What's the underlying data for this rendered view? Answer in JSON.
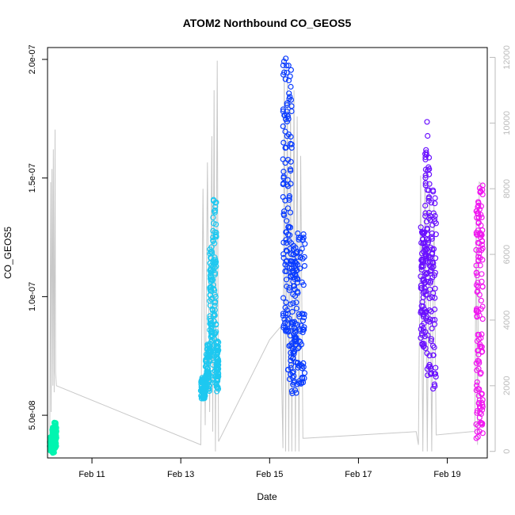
{
  "chart_data": {
    "type": "scatter",
    "title": "ATOM2 Northbound CO_GEOS5",
    "xlabel": "Date",
    "ylabel": "CO_GEOS5",
    "xlim": [
      10.0,
      19.9
    ],
    "ylim": [
      3.2e-08,
      2.05e-07
    ],
    "x_ticks": [
      {
        "value": 11,
        "label": "Feb 11"
      },
      {
        "value": 13,
        "label": "Feb 13"
      },
      {
        "value": 15,
        "label": "Feb 15"
      },
      {
        "value": 17,
        "label": "Feb 17"
      },
      {
        "value": 19,
        "label": "Feb 19"
      }
    ],
    "y_ticks": [
      {
        "value": 5e-08,
        "label": "5.0e-08"
      },
      {
        "value": 1e-07,
        "label": "1.0e-07"
      },
      {
        "value": 1.5e-07,
        "label": "1.5e-07"
      },
      {
        "value": 2e-07,
        "label": "2.0e-07"
      }
    ],
    "y2_ticks": [
      0,
      2000,
      4000,
      6000,
      8000,
      10000,
      12000
    ],
    "y2lim": [
      -200,
      12300
    ],
    "colors": {
      "altitude_line": "#c8c8c8",
      "right_axis": "#bbbbbb",
      "frame": "#000000"
    },
    "series": [
      {
        "color": "#00f5b0",
        "x": [
          10.05,
          10.2
        ],
        "y": [
          3.4e-08,
          4.7e-08
        ],
        "segments": [
          [
            10.05,
            10.1,
            3.5e-08,
            4.1e-08
          ],
          [
            10.1,
            10.15,
            3.4e-08,
            4.5e-08
          ],
          [
            10.15,
            10.2,
            3.6e-08,
            4.7e-08
          ]
        ]
      },
      {
        "color": "#1ec8f0",
        "x": [
          13.45,
          13.85
        ],
        "y": [
          5.7e-08,
          1.43e-07
        ],
        "segments": [
          [
            13.45,
            13.55,
            5.7e-08,
            6.6e-08
          ],
          [
            13.55,
            13.65,
            6e-08,
            8e-08
          ],
          [
            13.65,
            13.72,
            7.5e-08,
            1.24e-07
          ],
          [
            13.72,
            13.8,
            6.2e-08,
            1.43e-07
          ],
          [
            13.8,
            13.85,
            6e-08,
            8.2e-08
          ]
        ]
      },
      {
        "color": "#0a3cff",
        "x": [
          15.3,
          15.8
        ],
        "y": [
          5.9e-08,
          2.04e-07
        ],
        "segments": [
          [
            15.3,
            15.4,
            8.5e-08,
            2.04e-07
          ],
          [
            15.4,
            15.5,
            6.5e-08,
            1.98e-07
          ],
          [
            15.5,
            15.6,
            5.9e-08,
            1.27e-07
          ],
          [
            15.6,
            15.8,
            6.3e-08,
            1.27e-07
          ]
        ]
      },
      {
        "color": "#6a10ff",
        "x": [
          18.4,
          18.75
        ],
        "y": [
          6e-08,
          1.74e-07
        ],
        "segments": [
          [
            18.4,
            18.5,
            7.8e-08,
            1.3e-07
          ],
          [
            18.5,
            18.6,
            6.5e-08,
            1.74e-07
          ],
          [
            18.6,
            18.75,
            6e-08,
            1.45e-07
          ]
        ]
      },
      {
        "color": "#f018f0",
        "x": [
          19.65,
          19.8
        ],
        "y": [
          4e-08,
          1.48e-07
        ],
        "segments": [
          [
            19.65,
            19.72,
            4e-08,
            1.4e-07
          ],
          [
            19.72,
            19.8,
            4.2e-08,
            1.48e-07
          ]
        ]
      }
    ],
    "altitude_track": [
      [
        10.05,
        0
      ],
      [
        10.07,
        8200
      ],
      [
        10.08,
        1200
      ],
      [
        10.1,
        8600
      ],
      [
        10.12,
        2000
      ],
      [
        10.13,
        9200
      ],
      [
        10.15,
        1800
      ],
      [
        10.17,
        9800
      ],
      [
        10.18,
        2400
      ],
      [
        10.2,
        2000
      ],
      [
        13.45,
        200
      ],
      [
        13.5,
        8000
      ],
      [
        13.55,
        800
      ],
      [
        13.6,
        8800
      ],
      [
        13.65,
        1200
      ],
      [
        13.7,
        9600
      ],
      [
        13.72,
        600
      ],
      [
        13.75,
        11000
      ],
      [
        13.78,
        0
      ],
      [
        13.82,
        11900
      ],
      [
        13.85,
        300
      ],
      [
        15.0,
        3400
      ],
      [
        15.25,
        3800
      ],
      [
        15.3,
        100
      ],
      [
        15.33,
        12000
      ],
      [
        15.36,
        0
      ],
      [
        15.4,
        11400
      ],
      [
        15.43,
        0
      ],
      [
        15.47,
        10800
      ],
      [
        15.5,
        0
      ],
      [
        15.55,
        11000
      ],
      [
        15.58,
        0
      ],
      [
        15.62,
        10200
      ],
      [
        15.66,
        0
      ],
      [
        15.7,
        9000
      ],
      [
        15.75,
        400
      ],
      [
        15.8,
        400
      ],
      [
        18.3,
        600
      ],
      [
        18.35,
        200
      ],
      [
        18.4,
        8400
      ],
      [
        18.45,
        0
      ],
      [
        18.5,
        8600
      ],
      [
        18.55,
        0
      ],
      [
        18.6,
        8200
      ],
      [
        18.65,
        0
      ],
      [
        18.7,
        7600
      ],
      [
        18.75,
        500
      ],
      [
        19.55,
        600
      ],
      [
        19.62,
        600
      ],
      [
        19.65,
        7200
      ],
      [
        19.68,
        200
      ],
      [
        19.72,
        8200
      ],
      [
        19.8,
        8100
      ]
    ]
  }
}
